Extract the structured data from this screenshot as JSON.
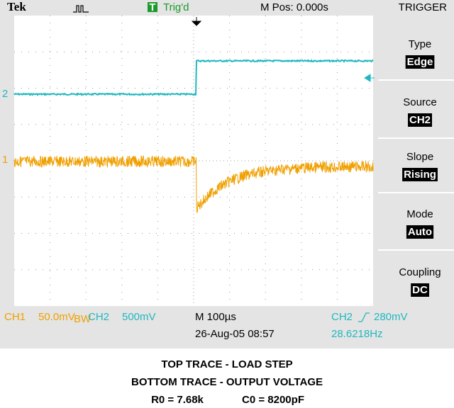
{
  "header": {
    "brand": "Tek",
    "trig_icon": "T",
    "trig_status": "Trig'd",
    "m_pos": "M Pos: 0.000s",
    "menu_title": "TRIGGER"
  },
  "channels": {
    "ch2_marker": "2",
    "ch1_marker": "1"
  },
  "menu": [
    {
      "label": "Type",
      "value": "Edge"
    },
    {
      "label": "Source",
      "value": "CH2"
    },
    {
      "label": "Slope",
      "value": "Rising"
    },
    {
      "label": "Mode",
      "value": "Auto"
    },
    {
      "label": "Coupling",
      "value": "DC"
    }
  ],
  "status": {
    "ch1_label": "CH1",
    "ch1_scale": "50.0mV",
    "bw": "BW",
    "ch2_label": "CH2",
    "ch2_scale": "500mV",
    "timebase": "M 100µs",
    "trig_source": "CH2",
    "trig_level": "280mV",
    "date": "26-Aug-05 08:57",
    "frequency": "28.6218Hz"
  },
  "caption": [
    "TOP TRACE - LOAD STEP",
    "BOTTOM TRACE - OUTPUT VOLTAGE",
    "R0 = 7.68k",
    "C0 = 8200pF"
  ]
}
